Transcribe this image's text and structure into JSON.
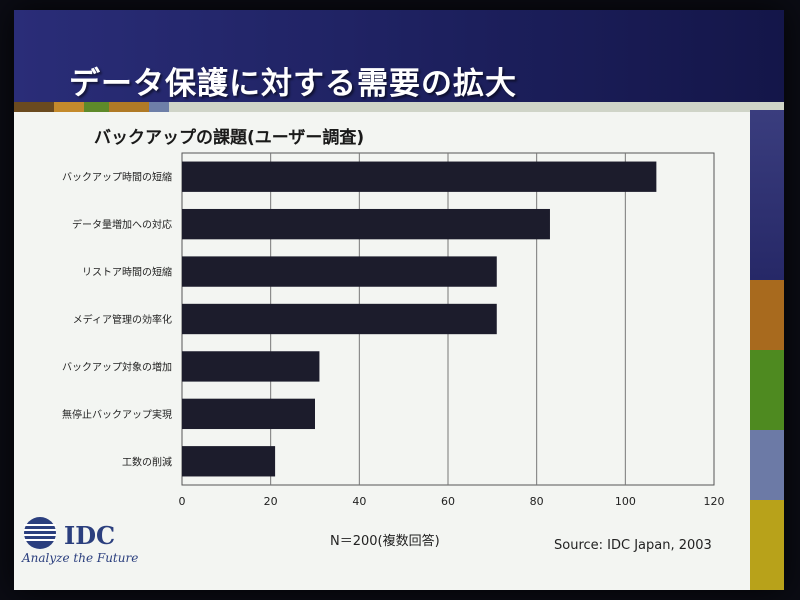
{
  "slide": {
    "title": "データ保護に対する需要の拡大",
    "note": "N＝200(複数回答)",
    "source": "Source: IDC Japan, 2003",
    "logo": {
      "text": "IDC",
      "tagline": "Analyze the Future"
    }
  },
  "colors": {
    "header": "#1c1f5c",
    "bar": "#1c1c2c",
    "slide_bg": "#f3f5f2",
    "brand": "#2b3f7e"
  },
  "chart_data": {
    "type": "bar",
    "orientation": "horizontal",
    "title": "バックアップの課題(ユーザー調査)",
    "categories": [
      "バックアップ時間の短縮",
      "データ量増加への対応",
      "リストア時間の短縮",
      "メディア管理の効率化",
      "バックアップ対象の増加",
      "無停止バックアップ実現",
      "工数の削減"
    ],
    "values": [
      107,
      83,
      71,
      71,
      31,
      30,
      21
    ],
    "xlim": [
      0,
      120
    ],
    "xticks": [
      "0",
      "20",
      "40",
      "60",
      "80",
      "100",
      "120"
    ],
    "grid": true
  }
}
